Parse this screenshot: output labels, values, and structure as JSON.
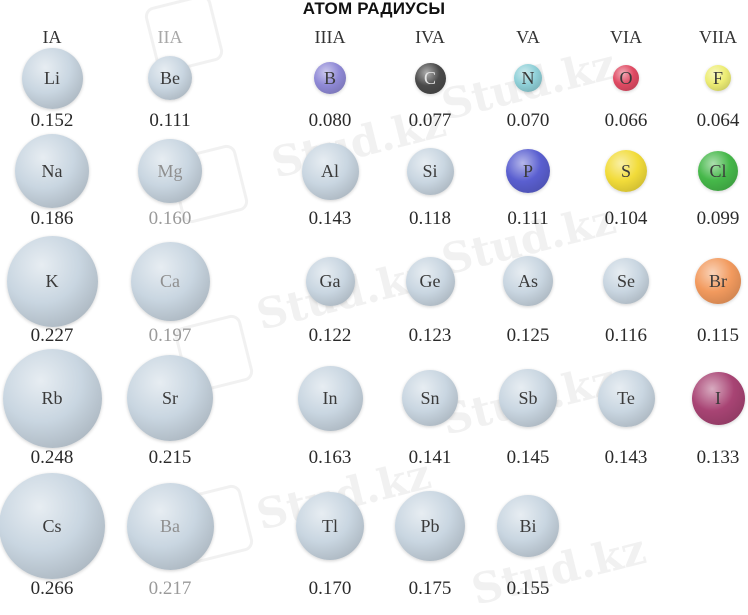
{
  "title": "АТОМ РАДИУСЫ",
  "groups": [
    "IA",
    "IIA",
    "IIIA",
    "IVA",
    "VA",
    "VIA",
    "VIIA"
  ],
  "watermark_text": "Stud.kz",
  "elements": [
    {
      "symbol": "Li",
      "radius": "0.152",
      "color": "#c9d6e1"
    },
    {
      "symbol": "Be",
      "radius": "0.111",
      "color": "#c9d6e1"
    },
    {
      "symbol": "B",
      "radius": "0.080",
      "color": "#8f89d6"
    },
    {
      "symbol": "C",
      "radius": "0.077",
      "color": "#4a4a4a"
    },
    {
      "symbol": "N",
      "radius": "0.070",
      "color": "#8fd0d8"
    },
    {
      "symbol": "O",
      "radius": "0.066",
      "color": "#e04a63"
    },
    {
      "symbol": "F",
      "radius": "0.064",
      "color": "#eded74"
    },
    {
      "symbol": "Na",
      "radius": "0.186",
      "color": "#c9d6e1"
    },
    {
      "symbol": "Mg",
      "radius": "0.160",
      "color": "#c9d6e1"
    },
    {
      "symbol": "Al",
      "radius": "0.143",
      "color": "#c9d6e1"
    },
    {
      "symbol": "Si",
      "radius": "0.118",
      "color": "#c9d6e1"
    },
    {
      "symbol": "P",
      "radius": "0.111",
      "color": "#5a5fd0"
    },
    {
      "symbol": "S",
      "radius": "0.104",
      "color": "#f2dc3a"
    },
    {
      "symbol": "Cl",
      "radius": "0.099",
      "color": "#46b84a"
    },
    {
      "symbol": "K",
      "radius": "0.227",
      "color": "#c9d6e1"
    },
    {
      "symbol": "Ca",
      "radius": "0.197",
      "color": "#c9d6e1"
    },
    {
      "symbol": "Ga",
      "radius": "0.122",
      "color": "#c9d6e1"
    },
    {
      "symbol": "Ge",
      "radius": "0.123",
      "color": "#c9d6e1"
    },
    {
      "symbol": "As",
      "radius": "0.125",
      "color": "#c9d6e1"
    },
    {
      "symbol": "Se",
      "radius": "0.116",
      "color": "#c9d6e1"
    },
    {
      "symbol": "Br",
      "radius": "0.115",
      "color": "#f29a5e"
    },
    {
      "symbol": "Rb",
      "radius": "0.248",
      "color": "#c9d6e1"
    },
    {
      "symbol": "Sr",
      "radius": "0.215",
      "color": "#c9d6e1"
    },
    {
      "symbol": "In",
      "radius": "0.163",
      "color": "#c9d6e1"
    },
    {
      "symbol": "Sn",
      "radius": "0.141",
      "color": "#c9d6e1"
    },
    {
      "symbol": "Sb",
      "radius": "0.145",
      "color": "#c9d6e1"
    },
    {
      "symbol": "Te",
      "radius": "0.143",
      "color": "#c9d6e1"
    },
    {
      "symbol": "I",
      "radius": "0.133",
      "color": "#a84474"
    },
    {
      "symbol": "Cs",
      "radius": "0.266",
      "color": "#c9d6e1"
    },
    {
      "symbol": "Ba",
      "radius": "0.217",
      "color": "#c9d6e1"
    },
    {
      "symbol": "Tl",
      "radius": "0.170",
      "color": "#c9d6e1"
    },
    {
      "symbol": "Pb",
      "radius": "0.175",
      "color": "#c9d6e1"
    },
    {
      "symbol": "Bi",
      "radius": "0.155",
      "color": "#c9d6e1"
    }
  ]
}
